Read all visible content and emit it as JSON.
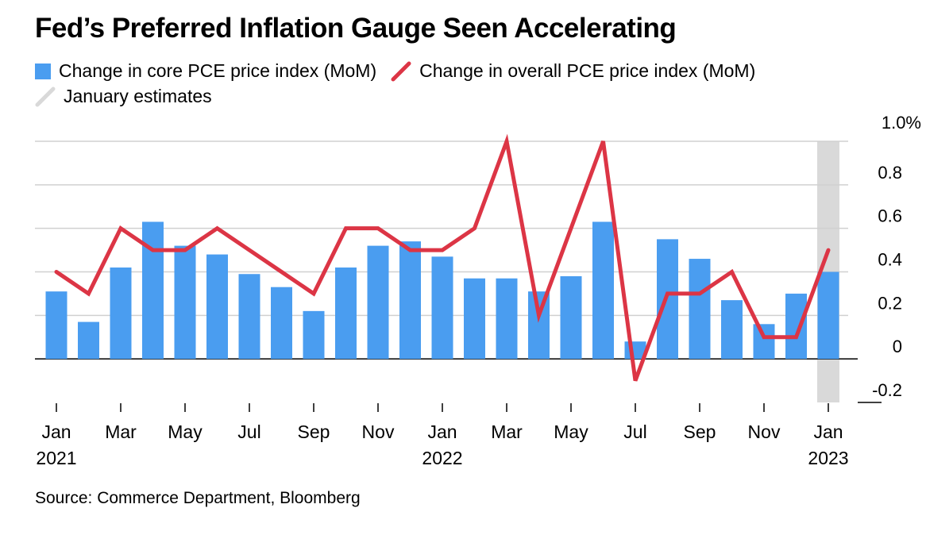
{
  "title": "Fed’s Preferred Inflation Gauge Seen Accelerating",
  "source": "Source: Commerce Department, Bloomberg",
  "colors": {
    "core_bar": "#4a9df0",
    "overall_line": "#dc3545",
    "estimate_band": "#d9d9d9",
    "grid": "#d0d0d0",
    "axis": "#000000"
  },
  "chart_data": {
    "type": "bar",
    "title": "Fed’s Preferred Inflation Gauge Seen Accelerating",
    "x": [
      "Jan 2021",
      "Feb 2021",
      "Mar 2021",
      "Apr 2021",
      "May 2021",
      "Jun 2021",
      "Jul 2021",
      "Aug 2021",
      "Sep 2021",
      "Oct 2021",
      "Nov 2021",
      "Dec 2021",
      "Jan 2022",
      "Feb 2022",
      "Mar 2022",
      "Apr 2022",
      "May 2022",
      "Jun 2022",
      "Jul 2022",
      "Aug 2022",
      "Sep 2022",
      "Oct 2022",
      "Nov 2022",
      "Dec 2022",
      "Jan 2023"
    ],
    "x_tick_labels": [
      {
        "index": 0,
        "month": "Jan",
        "year": "2021"
      },
      {
        "index": 2,
        "month": "Mar",
        "year": ""
      },
      {
        "index": 4,
        "month": "May",
        "year": ""
      },
      {
        "index": 6,
        "month": "Jul",
        "year": ""
      },
      {
        "index": 8,
        "month": "Sep",
        "year": ""
      },
      {
        "index": 10,
        "month": "Nov",
        "year": ""
      },
      {
        "index": 12,
        "month": "Jan",
        "year": "2022"
      },
      {
        "index": 14,
        "month": "Mar",
        "year": ""
      },
      {
        "index": 16,
        "month": "May",
        "year": ""
      },
      {
        "index": 18,
        "month": "Jul",
        "year": ""
      },
      {
        "index": 20,
        "month": "Sep",
        "year": ""
      },
      {
        "index": 22,
        "month": "Nov",
        "year": ""
      },
      {
        "index": 24,
        "month": "Jan",
        "year": "2023"
      }
    ],
    "series": [
      {
        "name": "Change in core PCE price index (MoM)",
        "type": "bar",
        "values": [
          0.31,
          0.17,
          0.42,
          0.63,
          0.52,
          0.48,
          0.39,
          0.33,
          0.22,
          0.42,
          0.52,
          0.54,
          0.47,
          0.37,
          0.37,
          0.31,
          0.38,
          0.63,
          0.08,
          0.55,
          0.46,
          0.27,
          0.16,
          0.3,
          0.4
        ]
      },
      {
        "name": "Change in overall PCE price index (MoM)",
        "type": "line",
        "values": [
          0.4,
          0.3,
          0.6,
          0.5,
          0.5,
          0.6,
          0.5,
          0.4,
          0.3,
          0.6,
          0.6,
          0.5,
          0.5,
          0.6,
          1.0,
          0.2,
          0.6,
          1.0,
          -0.1,
          0.3,
          0.3,
          0.4,
          0.1,
          0.1,
          0.5
        ]
      }
    ],
    "estimate_band": {
      "label": "January estimates",
      "index": 24
    },
    "ylim": [
      -0.2,
      1.0
    ],
    "y_ticks": [
      -0.2,
      0,
      0.2,
      0.4,
      0.6,
      0.8,
      1.0
    ],
    "y_tick_labels": [
      "-0.2",
      "0",
      "0.2",
      "0.4",
      "0.6",
      "0.8",
      "1.0%"
    ],
    "y_axis_side": "right",
    "grid": true,
    "legend_position": "top-left"
  }
}
